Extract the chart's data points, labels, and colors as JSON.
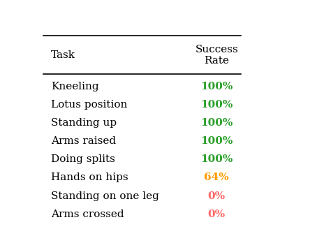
{
  "tasks": [
    "Kneeling",
    "Lotus position",
    "Standing up",
    "Arms raised",
    "Doing splits",
    "Hands on hips",
    "Standing on one leg",
    "Arms crossed"
  ],
  "values": [
    "100%",
    "100%",
    "100%",
    "100%",
    "100%",
    "64%",
    "0%",
    "0%"
  ],
  "colors": [
    "#2ca02c",
    "#2ca02c",
    "#2ca02c",
    "#2ca02c",
    "#2ca02c",
    "#ff9900",
    "#ff6666",
    "#ff6666"
  ],
  "header_task": "Task",
  "header_value": "Success\nRate",
  "bg_color": "#ffffff",
  "text_color": "#000000",
  "font_size": 11,
  "header_font_size": 11
}
